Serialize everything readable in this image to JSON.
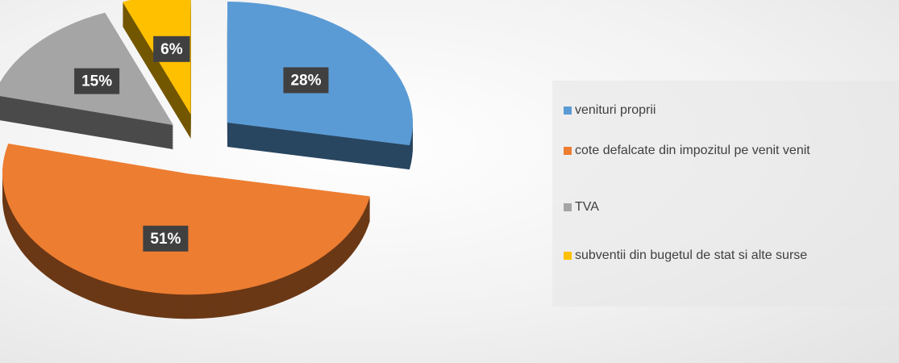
{
  "chart_data": {
    "type": "pie",
    "categories": [
      "venituri proprii",
      "cote defalcate din impozitul pe venit venit",
      "TVA",
      "subventii din bugetul de stat si alte surse"
    ],
    "values": [
      28,
      51,
      15,
      6
    ],
    "value_labels": [
      "28%",
      "51%",
      "15%",
      "6%"
    ],
    "colors": [
      "#5b9bd5",
      "#ed7d31",
      "#a5a5a5",
      "#ffc000"
    ],
    "legend": "right"
  }
}
